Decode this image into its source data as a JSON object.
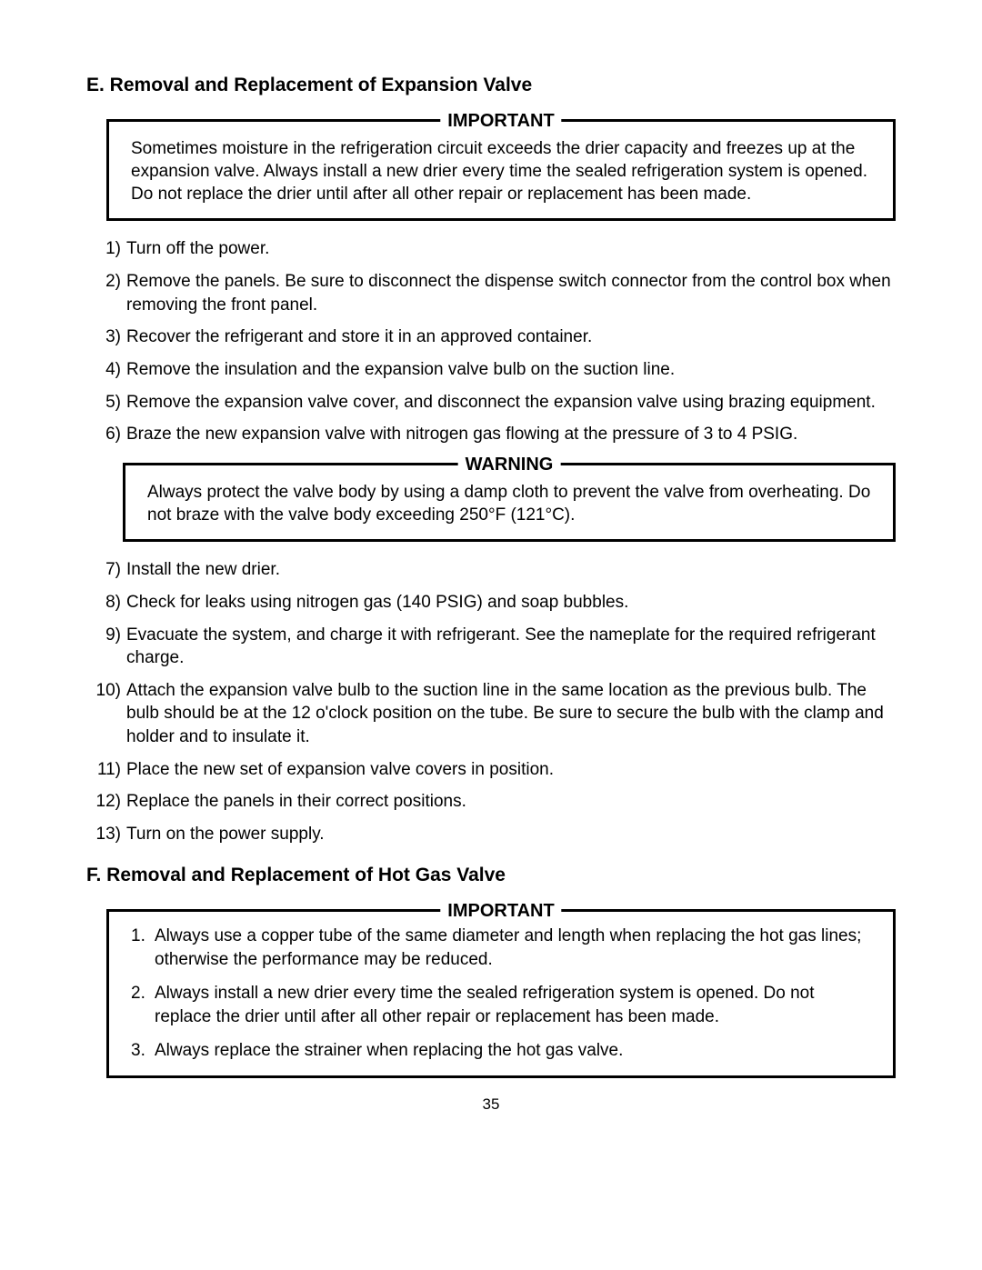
{
  "sectionE": {
    "heading": "E. Removal and Replacement of Expansion Valve",
    "important": {
      "label": "IMPORTANT",
      "body": "Sometimes moisture in the refrigeration circuit exceeds the drier capacity and freezes up at the expansion valve. Always install a new drier every time the sealed refrigeration system is opened. Do not replace the drier until after all other repair or replacement has been made."
    },
    "steps1": [
      {
        "n": "1)",
        "t": "Turn off the power."
      },
      {
        "n": "2)",
        "t": "Remove the panels. Be sure to disconnect the dispense switch connector from the control box when removing the front panel."
      },
      {
        "n": "3)",
        "t": "Recover the refrigerant and store it in an approved container."
      },
      {
        "n": "4)",
        "t": "Remove the insulation and the expansion valve bulb on the suction line."
      },
      {
        "n": "5)",
        "t": "Remove the expansion valve cover, and disconnect the expansion valve using brazing equipment."
      },
      {
        "n": "6)",
        "t": "Braze the new expansion valve with nitrogen gas flowing at the pressure of 3 to 4 PSIG."
      }
    ],
    "warning": {
      "label": "WARNING",
      "body": "Always protect the valve body by using a damp cloth to prevent the valve from overheating. Do not braze with the valve body exceeding 250°F (121°C)."
    },
    "steps2": [
      {
        "n": "7)",
        "t": "Install the new drier."
      },
      {
        "n": "8)",
        "t": "Check for leaks using nitrogen gas (140 PSIG) and soap bubbles."
      },
      {
        "n": "9)",
        "t": "Evacuate the system, and charge it with refrigerant. See the nameplate for the required refrigerant charge."
      },
      {
        "n": "10)",
        "t": "Attach the expansion valve bulb to the suction line in the same location as the previous bulb. The bulb should be at the 12 o'clock position on the tube. Be sure to secure the bulb with the clamp and holder and to insulate it."
      },
      {
        "n": "11)",
        "t": "Place the new set of expansion valve covers in position."
      },
      {
        "n": "12)",
        "t": "Replace the panels in their correct positions."
      },
      {
        "n": "13)",
        "t": "Turn on the power supply."
      }
    ]
  },
  "sectionF": {
    "heading": "F. Removal and Replacement of Hot Gas Valve",
    "important": {
      "label": "IMPORTANT",
      "items": [
        {
          "n": "1.",
          "t": "Always use a copper tube of the same diameter and length when replacing the hot gas lines; otherwise the performance may be reduced."
        },
        {
          "n": "2.",
          "t": "Always install a new drier every time the sealed refrigeration system is opened. Do not replace the drier until after all other repair or replacement has been made."
        },
        {
          "n": "3.",
          "t": "Always replace the strainer when replacing the hot gas valve."
        }
      ]
    }
  },
  "pageNumber": "35"
}
